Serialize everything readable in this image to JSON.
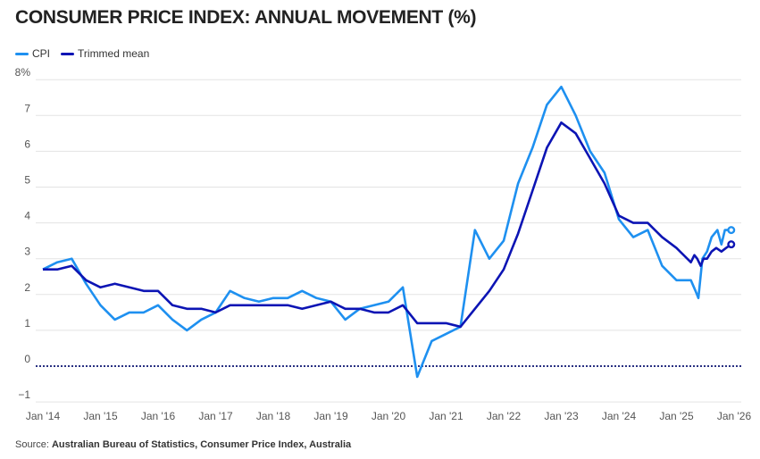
{
  "chart_data": {
    "type": "line",
    "title": "CONSUMER PRICE INDEX: ANNUAL MOVEMENT (%)",
    "xlabel": "",
    "ylabel": "",
    "ylim": [
      -1,
      8
    ],
    "xlim": [
      2014,
      2026
    ],
    "y_ticks": [
      -1,
      0,
      1,
      2,
      3,
      4,
      5,
      6,
      7,
      8
    ],
    "y_tick_labels": [
      "−1",
      "0",
      "1",
      "2",
      "3",
      "4",
      "5",
      "6",
      "7",
      "8%"
    ],
    "x_ticks": [
      2014,
      2015,
      2016,
      2017,
      2018,
      2019,
      2020,
      2021,
      2022,
      2023,
      2024,
      2025,
      2026
    ],
    "x_tick_labels": [
      "Jan '14",
      "Jan '15",
      "Jan '16",
      "Jan '17",
      "Jan '18",
      "Jan '19",
      "Jan '20",
      "Jan '21",
      "Jan '22",
      "Jan '23",
      "Jan '24",
      "Jan '25",
      "Jan '26"
    ],
    "grid": true,
    "legend_position": "top-left",
    "quarterly_x_start": 2014,
    "quarterly_x_step": 0.25,
    "series": [
      {
        "name": "CPI",
        "color": "#1e90f0",
        "quarterly_values": [
          2.7,
          2.9,
          3.0,
          2.3,
          1.7,
          1.3,
          1.5,
          1.5,
          1.7,
          1.3,
          1.0,
          1.3,
          1.5,
          2.1,
          1.9,
          1.8,
          1.9,
          1.9,
          2.1,
          1.9,
          1.8,
          1.3,
          1.6,
          1.7,
          1.8,
          2.2,
          -0.3,
          0.7,
          0.9,
          1.1,
          3.8,
          3.0,
          3.5,
          5.1,
          6.1,
          7.3,
          7.8,
          7.0,
          6.0,
          5.4,
          4.1,
          3.6,
          3.8,
          2.8,
          2.4,
          2.4
        ],
        "monthly_points": [
          [
            2025.33,
            2.1
          ],
          [
            2025.38,
            1.9
          ],
          [
            2025.45,
            3.0
          ],
          [
            2025.53,
            3.2
          ],
          [
            2025.61,
            3.6
          ],
          [
            2025.71,
            3.8
          ],
          [
            2025.78,
            3.4
          ],
          [
            2025.84,
            3.8
          ],
          [
            2025.95,
            3.8
          ]
        ]
      },
      {
        "name": "Trimmed mean",
        "color": "#0c14b4",
        "quarterly_values": [
          2.7,
          2.7,
          2.8,
          2.4,
          2.2,
          2.3,
          2.2,
          2.1,
          2.1,
          1.7,
          1.6,
          1.6,
          1.5,
          1.7,
          1.7,
          1.7,
          1.7,
          1.7,
          1.6,
          1.7,
          1.8,
          1.6,
          1.6,
          1.5,
          1.5,
          1.7,
          1.2,
          1.2,
          1.2,
          1.1,
          1.6,
          2.1,
          2.7,
          3.7,
          4.9,
          6.1,
          6.8,
          6.5,
          5.8,
          5.1,
          4.2,
          4.0,
          4.0,
          3.6,
          3.3,
          2.9
        ],
        "monthly_points": [
          [
            2025.31,
            3.1
          ],
          [
            2025.36,
            3.0
          ],
          [
            2025.42,
            2.8
          ],
          [
            2025.47,
            3.0
          ],
          [
            2025.53,
            3.0
          ],
          [
            2025.61,
            3.2
          ],
          [
            2025.69,
            3.3
          ],
          [
            2025.78,
            3.2
          ],
          [
            2025.86,
            3.3
          ],
          [
            2025.95,
            3.4
          ]
        ]
      }
    ]
  },
  "source": {
    "prefix": "Source: ",
    "text": "Australian Bureau of Statistics, Consumer Price Index, Australia"
  }
}
